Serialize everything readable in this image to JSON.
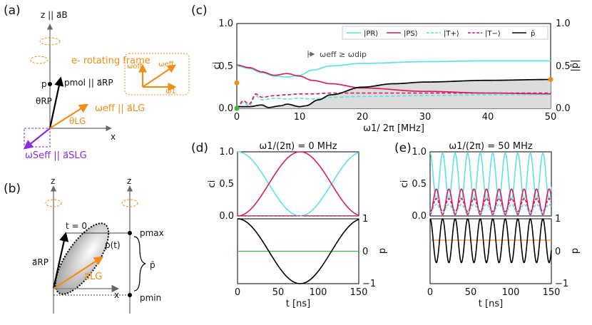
{
  "panels": {
    "a": {
      "label": "(a)",
      "z_axis": "z || a⃗B",
      "frame_legend": "e- rotating frame",
      "p": "p",
      "p_mol": "pmol || a⃗RP",
      "theta_rp": "θRP",
      "omega_eff": "ωeff || a⃗LG",
      "theta_lg": "θLG",
      "omega_s_eff": "ωSeff || a⃗SLG",
      "x": "x",
      "inset": {
        "w_off": "ωoff",
        "w_eff": "ωeff",
        "w1": "ω1"
      }
    },
    "b": {
      "label": "(b)",
      "z1": "z",
      "z2": "z",
      "t0": "t = 0",
      "pt": "p(t)",
      "a_rp": "a⃗RP",
      "a_lg": "a⃗LG",
      "x": "x",
      "pmax": "pmax",
      "pmin": "pmin",
      "pbar": "p̄"
    },
    "c": {
      "label": "(c)",
      "annotation": "ωeff ≥ ωdip"
    },
    "d": {
      "label": "(d)",
      "title": "ω1/(2π) = 0 MHz"
    },
    "e": {
      "label": "(e)",
      "title": "ω1/(2π) = 50 MHz"
    }
  },
  "colors": {
    "cyan": "#5ee0e8",
    "crimson": "#d61f5e",
    "black": "#000000",
    "orange": "#f28c14",
    "purple": "#8a2be2",
    "green": "#3cb83c",
    "fill": "#dcdcdc"
  },
  "chart_data": [
    {
      "id": "c",
      "type": "line",
      "xlabel": "ω1/ 2π  [MHz]",
      "ylabel": "ci",
      "y2label": "|p̄|",
      "xlim": [
        0,
        50
      ],
      "ylim": [
        0,
        1
      ],
      "xticks": [
        "0",
        "10",
        "20",
        "30",
        "40",
        "50"
      ],
      "yticks": [
        "0.0",
        "0.5",
        "1.0"
      ],
      "y2ticks": [
        "0.0",
        "0.5",
        "1.0"
      ],
      "legend": [
        "|PR⟩",
        "|PS⟩",
        "|T+⟩",
        "|T−⟩",
        "p̄"
      ],
      "series": [
        {
          "name": "|PR⟩",
          "x": [
            0,
            2,
            4,
            6,
            8,
            10,
            12,
            15,
            20,
            30,
            40,
            50
          ],
          "values": [
            0.5,
            0.47,
            0.42,
            0.38,
            0.37,
            0.39,
            0.45,
            0.5,
            0.53,
            0.55,
            0.56,
            0.56
          ]
        },
        {
          "name": "|PS⟩",
          "x": [
            0,
            2,
            4,
            6,
            8,
            10,
            12,
            15,
            20,
            30,
            40,
            50
          ],
          "values": [
            0.51,
            0.48,
            0.43,
            0.39,
            0.41,
            0.38,
            0.33,
            0.29,
            0.24,
            0.2,
            0.18,
            0.17
          ]
        },
        {
          "name": "|T+⟩",
          "x": [
            0,
            1,
            2,
            3,
            4,
            6,
            8,
            10,
            12,
            15,
            20,
            30,
            40,
            50
          ],
          "values": [
            0.0,
            0.07,
            0.03,
            0.15,
            0.1,
            0.12,
            0.11,
            0.12,
            0.11,
            0.13,
            0.14,
            0.15,
            0.16,
            0.16
          ]
        },
        {
          "name": "|T−⟩",
          "x": [
            0,
            1,
            2,
            3,
            4,
            6,
            8,
            10,
            12,
            15,
            20,
            30,
            40,
            50
          ],
          "values": [
            0.0,
            0.09,
            0.05,
            0.17,
            0.13,
            0.15,
            0.16,
            0.17,
            0.17,
            0.18,
            0.18,
            0.18,
            0.18,
            0.18
          ]
        },
        {
          "name": "p̄",
          "x": [
            0,
            2,
            4,
            5,
            7,
            8,
            10,
            11,
            13,
            15,
            20,
            25,
            30,
            40,
            50
          ],
          "values": [
            0.02,
            0.02,
            0.04,
            0.01,
            0.03,
            0.05,
            0.02,
            0.03,
            0.1,
            0.16,
            0.25,
            0.29,
            0.31,
            0.33,
            0.34
          ]
        }
      ]
    },
    {
      "id": "d_top",
      "type": "line",
      "xlim": [
        0,
        150
      ],
      "ylim": [
        0,
        1
      ],
      "yticks": [
        "0.0",
        "0.5",
        "1.0"
      ],
      "ylabel": "ci",
      "series": [
        {
          "name": "|PR⟩",
          "function": "cos2(pi t / 155)"
        },
        {
          "name": "|PS⟩",
          "function": "sin2(pi t / 155)"
        }
      ]
    },
    {
      "id": "d_bottom",
      "type": "line",
      "xlim": [
        0,
        150
      ],
      "ylim": [
        -1,
        1
      ],
      "xticks": [
        "0",
        "50",
        "100",
        "150"
      ],
      "y2ticks": [
        "1",
        "0",
        "−1"
      ],
      "xlabel": "t [ns]",
      "y2label": "p",
      "series": [
        {
          "name": "p",
          "function": "cos(2 pi t / 155)"
        },
        {
          "name": "p̄",
          "values": [
            0.0
          ]
        }
      ]
    },
    {
      "id": "e_top",
      "type": "line",
      "xlim": [
        0,
        150
      ],
      "ylim": [
        0,
        1
      ],
      "yticks": [
        "0.0",
        "0.5",
        "1.0"
      ],
      "ylabel": "ci",
      "series": [
        {
          "name": "|PR⟩",
          "period_ns": 15.5,
          "min": 0.25,
          "max": 0.98
        },
        {
          "name": "|PS⟩",
          "period_ns": 15.5,
          "min": 0.02,
          "max": 0.42
        },
        {
          "name": "|T+⟩",
          "period_ns": 15.5,
          "min": 0.05,
          "max": 0.18
        },
        {
          "name": "|T−⟩",
          "period_ns": 15.5,
          "min": 0.07,
          "max": 0.27
        }
      ]
    },
    {
      "id": "e_bottom",
      "type": "line",
      "xlim": [
        0,
        150
      ],
      "ylim": [
        -1,
        1
      ],
      "xticks": [
        "0",
        "50",
        "100",
        "150"
      ],
      "y2ticks": [
        "1",
        "0",
        "−1"
      ],
      "xlabel": "t [ns]",
      "y2label": "p",
      "series": [
        {
          "name": "p",
          "period_ns": 15.5,
          "min": -0.35,
          "max": 1.0
        },
        {
          "name": "p̄",
          "values": [
            0.34
          ]
        }
      ]
    }
  ]
}
